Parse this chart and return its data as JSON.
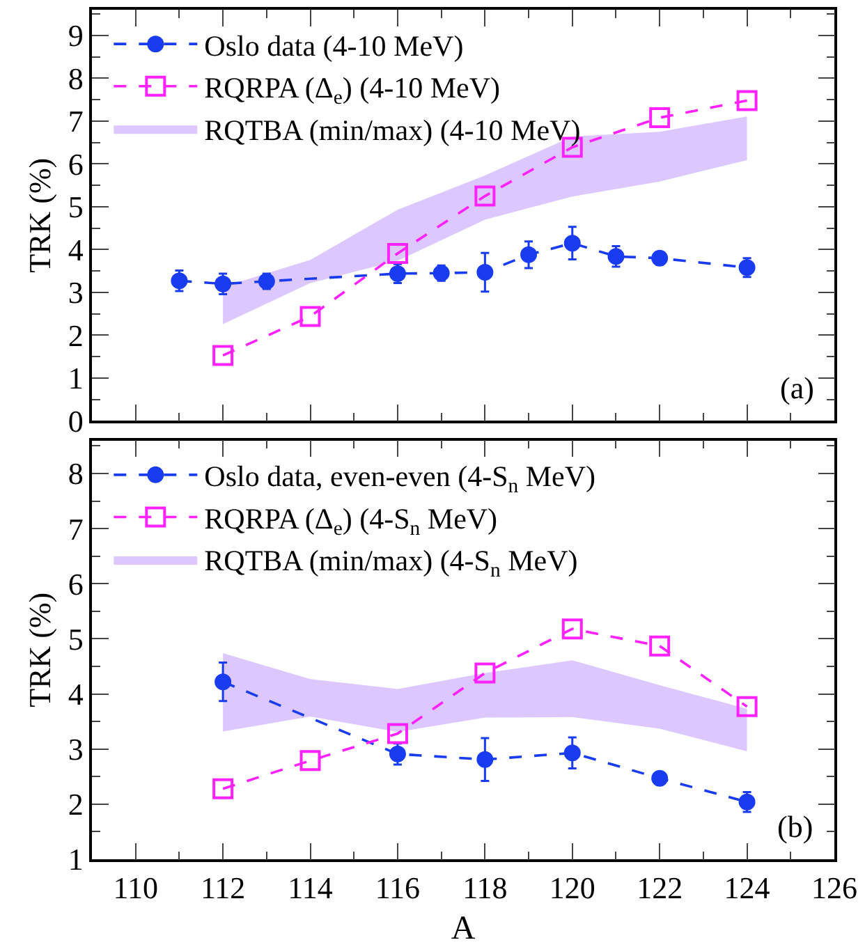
{
  "chart_data": [
    {
      "type": "scatter",
      "ylabel": "TRK (%)",
      "xlim": [
        109,
        126
      ],
      "xticks": [
        110,
        112,
        114,
        116,
        118,
        120,
        122,
        124,
        126
      ],
      "ylim": [
        0,
        9.6
      ],
      "yticks": [
        0,
        1,
        2,
        3,
        4,
        5,
        6,
        7,
        8,
        9
      ],
      "tick_labels": "y",
      "grid": false,
      "legend": "top left",
      "annotations": [
        "(a)"
      ],
      "series": [
        {
          "name": "Oslo data (4-10 MeV)",
          "type": "line",
          "color": "#1a3cf0",
          "marker": "circle",
          "line_style": "dashed",
          "x": [
            111,
            112,
            113,
            116,
            117,
            118,
            119,
            120,
            121,
            122,
            124
          ],
          "values": [
            3.27,
            3.2,
            3.26,
            3.44,
            3.45,
            3.47,
            3.88,
            4.15,
            3.84,
            3.8,
            3.58
          ],
          "errors": [
            0.24,
            0.24,
            0.18,
            0.22,
            0.18,
            0.45,
            0.31,
            0.38,
            0.24,
            0.15,
            0.22
          ]
        },
        {
          "name": "RQRPA (Δ$_{e}$) (4-10 MeV)",
          "type": "line",
          "color": "#ff22ff",
          "marker": "square",
          "line_style": "dashed",
          "x": [
            112,
            114,
            116,
            118,
            120,
            122,
            124
          ],
          "values": [
            1.53,
            2.44,
            3.91,
            5.25,
            6.39,
            7.08,
            7.48
          ]
        },
        {
          "name": "RQTBA (min/max) (4-10 MeV)",
          "type": "area",
          "color": "#dcc8ff",
          "x": [
            112,
            114,
            116,
            118,
            120,
            122,
            124
          ],
          "values": [
            null,
            null,
            null,
            null,
            null,
            null,
            null
          ],
          "lower": [
            2.26,
            3.22,
            3.74,
            4.7,
            5.24,
            5.59,
            6.09
          ],
          "upper": [
            3.13,
            3.76,
            4.93,
            5.73,
            6.64,
            6.75,
            7.11
          ]
        }
      ]
    },
    {
      "type": "scatter",
      "xlabel": "A",
      "ylabel": "TRK (%)",
      "xlim": [
        109,
        126
      ],
      "xticks": [
        110,
        112,
        114,
        116,
        118,
        120,
        122,
        124,
        126
      ],
      "ylim": [
        1,
        8.6
      ],
      "yticks": [
        1,
        2,
        3,
        4,
        5,
        6,
        7,
        8
      ],
      "grid": false,
      "legend": "top left",
      "annotations": [
        "(b)"
      ],
      "series": [
        {
          "name": "Oslo data, even-even (4-S$_{n}$ MeV)",
          "type": "line",
          "color": "#1a3cf0",
          "marker": "circle",
          "line_style": "dashed",
          "x": [
            112,
            116,
            118,
            120,
            122,
            124
          ],
          "values": [
            4.22,
            2.91,
            2.81,
            2.93,
            2.47,
            2.04
          ],
          "errors": [
            0.35,
            0.19,
            0.39,
            0.28,
            0.11,
            0.18
          ]
        },
        {
          "name": "RQRPA (Δ$_{e}$) (4-S$_{n}$ MeV)",
          "type": "line",
          "color": "#ff22ff",
          "marker": "square",
          "line_style": "dashed",
          "x": [
            112,
            114,
            116,
            118,
            120,
            122,
            124
          ],
          "values": [
            2.28,
            2.79,
            3.28,
            4.38,
            5.18,
            4.87,
            3.77
          ]
        },
        {
          "name": "RQTBA (min/max) (4-S$_{n}$ MeV)",
          "type": "area",
          "color": "#dcc8ff",
          "x": [
            112,
            114,
            116,
            118,
            120,
            122,
            124
          ],
          "values": [
            null,
            null,
            null,
            null,
            null,
            null,
            null
          ],
          "lower": [
            3.32,
            3.59,
            3.31,
            3.57,
            3.58,
            3.37,
            2.96
          ],
          "upper": [
            4.74,
            4.27,
            4.09,
            4.38,
            4.61,
            4.16,
            3.73
          ]
        }
      ]
    }
  ]
}
